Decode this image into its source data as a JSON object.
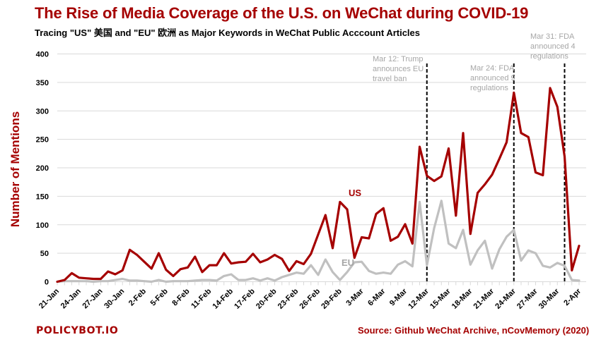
{
  "header": {
    "title": "The Rise of Media Coverage of the U.S. on WeChat during COVID-19",
    "subtitle": "Tracing \"US\" 美国 and \"EU\" 欧洲 as Major Keywords in WeChat Public Acccount Articles"
  },
  "footer": {
    "logo": "POLICYBOT.IO",
    "source": "Source: Github WeChat Archive, nCovMemory (2020)"
  },
  "colors": {
    "us": "#a50000",
    "eu": "#c0c0c0",
    "grid": "#d9d9d9",
    "annotation": "#a6a6a6"
  },
  "chart_data": {
    "type": "line",
    "title": "The Rise of Media Coverage of the U.S. on WeChat during COVID-19",
    "subtitle": "Tracing \"US\" 美国 and \"EU\" 欧洲 as Major Keywords in WeChat Public Acccount Articles",
    "xlabel": "",
    "ylabel": "Number of Mentions",
    "ylim": [
      0,
      400
    ],
    "yticks": [
      0,
      50,
      100,
      150,
      200,
      250,
      300,
      350,
      400
    ],
    "grid": true,
    "legend": "inline labels",
    "x_start": "21-Jan",
    "x_end": "2-Apr",
    "xtick_labels": [
      "21-Jan",
      "24-Jan",
      "27-Jan",
      "30-Jan",
      "2-Feb",
      "5-Feb",
      "8-Feb",
      "11-Feb",
      "14-Feb",
      "17-Feb",
      "20-Feb",
      "23-Feb",
      "26-Feb",
      "29-Feb",
      "3-Mar",
      "6-Mar",
      "9-Mar",
      "12-Mar",
      "15-Mar",
      "18-Mar",
      "21-Mar",
      "24-Mar",
      "27-Mar",
      "30-Mar",
      "2-Apr"
    ],
    "series": [
      {
        "name": "US",
        "label_text": "US",
        "values": [
          0,
          3,
          15,
          7,
          6,
          5,
          5,
          18,
          13,
          20,
          56,
          47,
          35,
          23,
          50,
          21,
          10,
          22,
          25,
          44,
          17,
          29,
          29,
          50,
          32,
          34,
          35,
          49,
          34,
          39,
          47,
          40,
          19,
          36,
          31,
          49,
          83,
          117,
          59,
          140,
          127,
          42,
          78,
          76,
          119,
          129,
          72,
          79,
          101,
          67,
          237,
          186,
          177,
          185,
          234,
          116,
          261,
          84,
          156,
          171,
          188,
          216,
          245,
          332,
          261,
          254,
          192,
          187,
          340,
          307,
          220,
          20,
          63
        ]
      },
      {
        "name": "EU",
        "label_text": "EU",
        "values": [
          0,
          1,
          1,
          1,
          1,
          0,
          1,
          1,
          3,
          5,
          2,
          2,
          1,
          0,
          3,
          0,
          1,
          1,
          1,
          2,
          3,
          3,
          2,
          10,
          13,
          3,
          3,
          6,
          2,
          6,
          2,
          8,
          12,
          16,
          14,
          29,
          12,
          39,
          17,
          3,
          17,
          34,
          35,
          19,
          14,
          16,
          14,
          30,
          36,
          27,
          140,
          29,
          94,
          142,
          67,
          59,
          91,
          30,
          55,
          72,
          23,
          57,
          79,
          91,
          37,
          55,
          50,
          28,
          25,
          33,
          28,
          3,
          2
        ]
      }
    ],
    "annotations": [
      {
        "date": "12-Mar",
        "lines": [
          "Mar 12: Trump",
          "announces EU",
          "travel ban"
        ]
      },
      {
        "date": "24-Mar",
        "lines": [
          "Mar 24: FDA",
          "announced 9",
          "regulations"
        ]
      },
      {
        "date": "31-Mar",
        "lines": [
          "Mar 31: FDA",
          "announced 4",
          "regulations"
        ]
      }
    ]
  }
}
